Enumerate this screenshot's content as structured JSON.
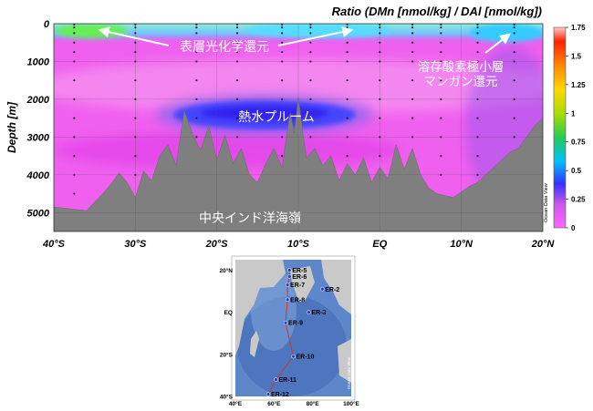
{
  "chart_data": {
    "type": "heatmap",
    "title": "Ratio (DMn [nmol/kg] / DAl [nmol/kg])",
    "ylabel": "Depth [m]",
    "xlabel": "",
    "x_ticks": [
      "40°S",
      "30°S",
      "20°S",
      "10°S",
      "EQ",
      "10°N",
      "20°N"
    ],
    "x_range": [
      -40,
      20
    ],
    "y_ticks": [
      "0",
      "1000",
      "2000",
      "3000",
      "4000",
      "5000"
    ],
    "y_range": [
      0,
      5500
    ],
    "colorbar_ticks": [
      "1.75",
      "1.5",
      "1.25",
      "1",
      "0.75",
      "0.5",
      "0.25",
      "0"
    ],
    "colorbar_range": [
      0,
      1.75
    ],
    "watermark": "Ocean Data View",
    "annotations": {
      "surface": "表層光化学還元",
      "plume": "熱水プルーム",
      "omz_line1": "溶存酸素極小層",
      "omz_line2": "マンガン還元",
      "ridge": "中央インド洋海嶺"
    },
    "stations_lat": [
      -37.5,
      -30,
      -22.5,
      -17.5,
      -12,
      -8.5,
      -4,
      0,
      4,
      7.5,
      12,
      16.5
    ],
    "bathymetry": [
      [
        -40,
        4850
      ],
      [
        -38,
        4900
      ],
      [
        -36,
        4950
      ],
      [
        -34,
        4500
      ],
      [
        -33,
        4250
      ],
      [
        -32,
        3950
      ],
      [
        -31,
        4200
      ],
      [
        -30,
        4600
      ],
      [
        -29,
        3900
      ],
      [
        -28,
        4150
      ],
      [
        -27,
        3500
      ],
      [
        -26,
        3200
      ],
      [
        -25,
        3750
      ],
      [
        -24,
        2300
      ],
      [
        -23,
        2900
      ],
      [
        -22,
        3350
      ],
      [
        -21,
        2700
      ],
      [
        -20,
        3600
      ],
      [
        -19,
        2950
      ],
      [
        -18,
        3700
      ],
      [
        -17,
        3300
      ],
      [
        -16,
        4000
      ],
      [
        -15,
        4200
      ],
      [
        -14,
        3700
      ],
      [
        -13,
        3300
      ],
      [
        -12,
        3800
      ],
      [
        -11,
        2350
      ],
      [
        -10.5,
        2900
      ],
      [
        -10,
        1950
      ],
      [
        -9.5,
        2800
      ],
      [
        -9,
        3550
      ],
      [
        -8,
        3300
      ],
      [
        -7,
        3750
      ],
      [
        -6,
        3500
      ],
      [
        -5,
        4150
      ],
      [
        -4,
        3700
      ],
      [
        -3,
        4000
      ],
      [
        -2,
        3550
      ],
      [
        -1,
        4200
      ],
      [
        0,
        3800
      ],
      [
        1,
        4100
      ],
      [
        2,
        3200
      ],
      [
        3,
        3850
      ],
      [
        4,
        3300
      ],
      [
        5,
        4000
      ],
      [
        6,
        4350
      ],
      [
        7,
        4500
      ],
      [
        8,
        4550
      ],
      [
        9,
        4600
      ],
      [
        10,
        4450
      ],
      [
        11,
        4300
      ],
      [
        12,
        4200
      ],
      [
        13,
        4000
      ],
      [
        14,
        3800
      ],
      [
        15,
        3600
      ],
      [
        16,
        3400
      ],
      [
        17,
        3300
      ],
      [
        18,
        3000
      ],
      [
        19,
        2700
      ],
      [
        20,
        2500
      ]
    ],
    "inset_map": {
      "x_ticks": [
        "40°E",
        "60°E",
        "80°E",
        "100°E"
      ],
      "y_ticks": [
        "20°N",
        "EQ",
        "20°S",
        "40°S"
      ],
      "watermark": "Ocean Data View",
      "stations": [
        {
          "label": "ER-2",
          "lon": 85,
          "lat": 11
        },
        {
          "label": "ER-3",
          "lon": 78,
          "lat": 0
        },
        {
          "label": "ER-5",
          "lon": 68,
          "lat": 20
        },
        {
          "label": "ER-6",
          "lon": 68,
          "lat": 17
        },
        {
          "label": "ER-7",
          "lon": 67,
          "lat": 13
        },
        {
          "label": "ER-8",
          "lon": 67,
          "lat": 6
        },
        {
          "label": "ER-9",
          "lon": 66,
          "lat": -5
        },
        {
          "label": "ER-10",
          "lon": 70,
          "lat": -21
        },
        {
          "label": "ER-11",
          "lon": 61,
          "lat": -32
        },
        {
          "label": "ER-12",
          "lon": 57,
          "lat": -39
        }
      ]
    }
  }
}
